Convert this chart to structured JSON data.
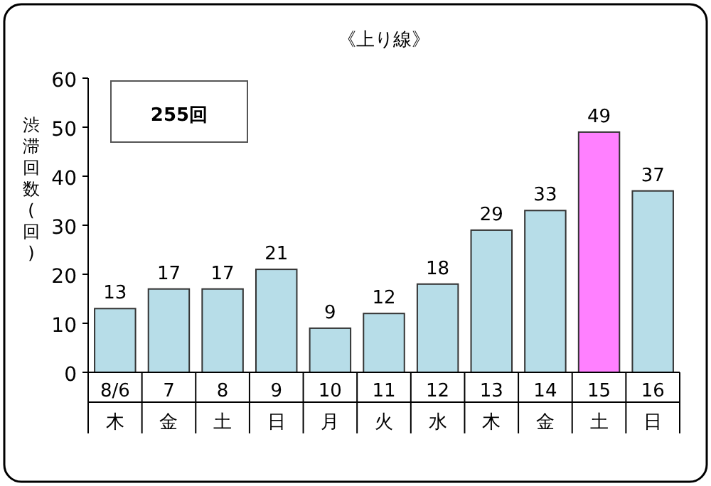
{
  "chart_data": {
    "type": "bar",
    "title": "《上り線》",
    "ylabel": "渋滞回数(回)",
    "categories": [
      "8/6\n木",
      "7\n金",
      "8\n土",
      "9\n日",
      "10\n月",
      "11\n火",
      "12\n水",
      "13\n木",
      "14\n金",
      "15\n土",
      "16\n日"
    ],
    "values": [
      13,
      17,
      17,
      21,
      9,
      12,
      18,
      29,
      33,
      49,
      37
    ],
    "colors": [
      "#b7dde8",
      "#b7dde8",
      "#b7dde8",
      "#b7dde8",
      "#b7dde8",
      "#b7dde8",
      "#b7dde8",
      "#b7dde8",
      "#b7dde8",
      "#ff80ff",
      "#b7dde8"
    ],
    "ylim": [
      0,
      60
    ],
    "yticks": [
      0,
      10,
      20,
      30,
      40,
      50,
      60
    ],
    "data_labels": true,
    "annotations": [
      "255回"
    ]
  }
}
